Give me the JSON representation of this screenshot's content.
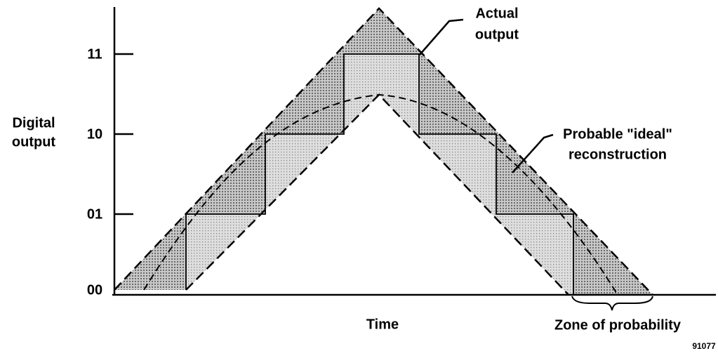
{
  "axes": {
    "y_label": [
      "Digital",
      "output"
    ],
    "x_label": "Time",
    "y_ticks": [
      "00",
      "01",
      "10",
      "11"
    ]
  },
  "annotations": {
    "actual": [
      "Actual",
      "output"
    ],
    "ideal": [
      "Probable \"ideal\"",
      "reconstruction"
    ],
    "zone": "Zone of probability"
  },
  "figure_id": "91077"
}
